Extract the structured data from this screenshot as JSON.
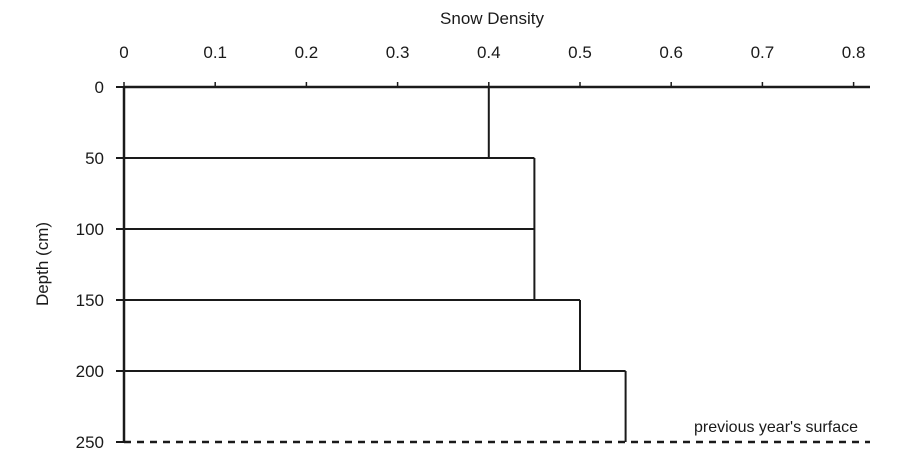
{
  "chart_data": {
    "type": "step",
    "title": "",
    "xlabel": "Snow Density",
    "ylabel": "Depth (cm)",
    "x_axis_position": "top",
    "xlim": [
      0,
      0.82
    ],
    "ylim": [
      0,
      250
    ],
    "y_inverted": true,
    "xticks": [
      0,
      0.1,
      0.2,
      0.3,
      0.4,
      0.5,
      0.6,
      0.7,
      0.8
    ],
    "xtick_labels": [
      "0",
      "0.1",
      "0.2",
      "0.3",
      "0.4",
      "0.5",
      "0.6",
      "0.7",
      "0.8"
    ],
    "yticks": [
      0,
      50,
      100,
      150,
      200,
      250
    ],
    "ytick_labels": [
      "0",
      "50",
      "100",
      "150",
      "200",
      "250"
    ],
    "grid": false,
    "layers": [
      {
        "depth_top": 0,
        "depth_bottom": 50,
        "density": 0.4
      },
      {
        "depth_top": 50,
        "depth_bottom": 100,
        "density": 0.45
      },
      {
        "depth_top": 100,
        "depth_bottom": 150,
        "density": 0.45
      },
      {
        "depth_top": 150,
        "depth_bottom": 200,
        "density": 0.5
      },
      {
        "depth_top": 200,
        "depth_bottom": 250,
        "density": 0.55
      }
    ],
    "reference_line": {
      "depth": 250,
      "style": "dashed",
      "label": "previous year's surface"
    },
    "colors": {
      "line": "#1a1a1a",
      "background": "#ffffff"
    }
  }
}
